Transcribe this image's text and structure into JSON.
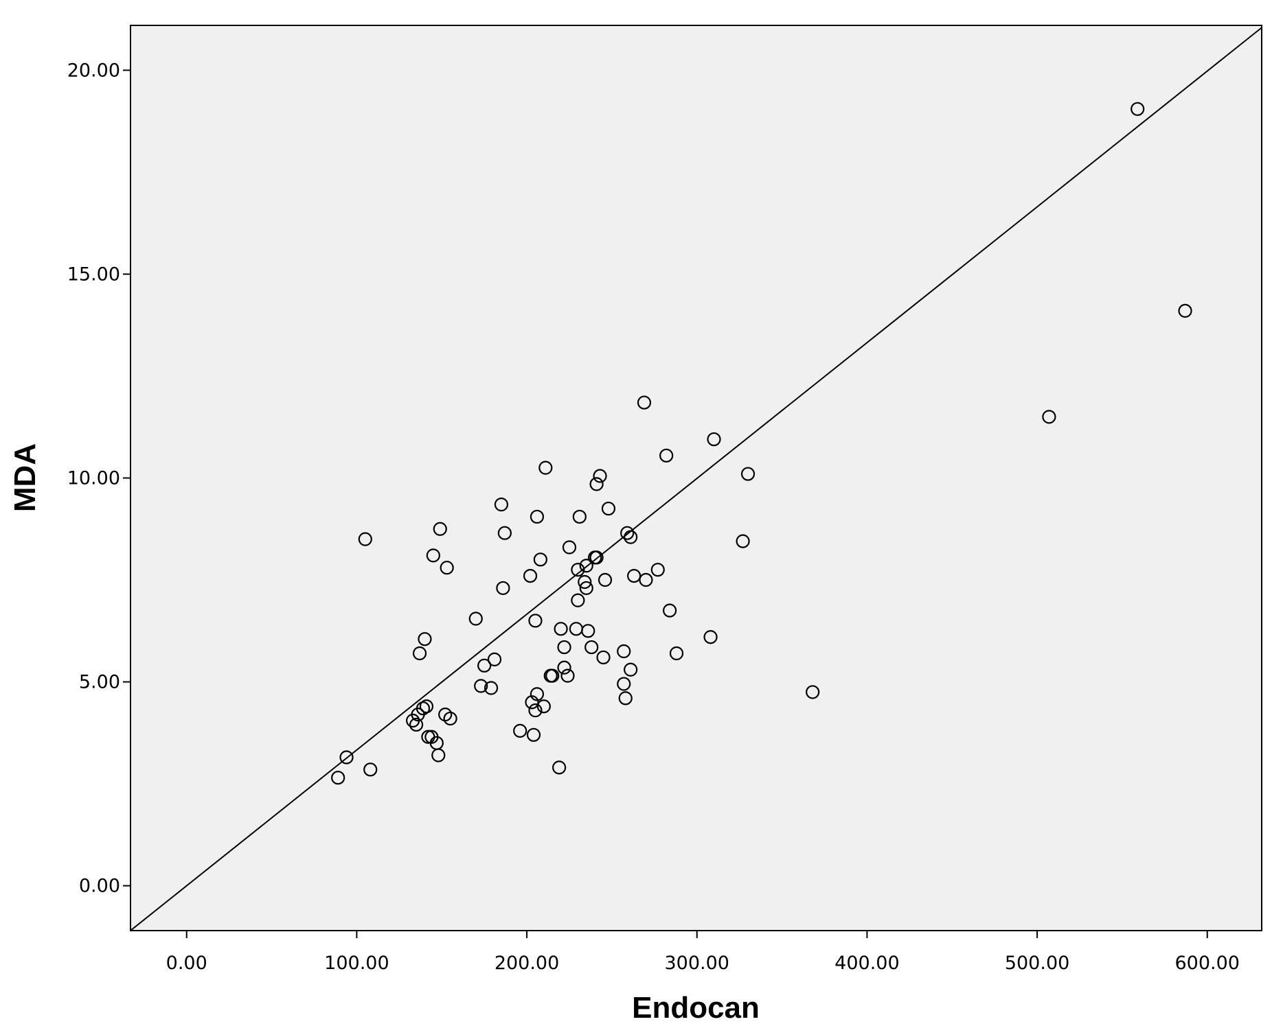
{
  "chart_data": {
    "type": "scatter",
    "xlabel": "Endocan",
    "ylabel": "MDA",
    "xlim": [
      -33,
      632
    ],
    "ylim": [
      -1.1,
      21.1
    ],
    "x_ticks": [
      0,
      100,
      200,
      300,
      400,
      500,
      600
    ],
    "x_tick_labels": [
      "0.00",
      "100.00",
      "200.00",
      "300.00",
      "400.00",
      "500.00",
      "600.00"
    ],
    "y_ticks": [
      0,
      5,
      10,
      15,
      20
    ],
    "y_tick_labels": [
      "0.00",
      "5.00",
      "10.00",
      "15.00",
      "20.00"
    ],
    "grid": false,
    "plot_background": "#f0f0f0",
    "marker": "open-circle",
    "colors": {
      "marker": "#000000",
      "line": "#000000",
      "frame": "#000000"
    },
    "fit_line": {
      "type": "linear",
      "intercept": 0.0,
      "slope": 0.0333
    },
    "points": [
      [
        89,
        2.65
      ],
      [
        94,
        3.15
      ],
      [
        105,
        8.5
      ],
      [
        108,
        2.85
      ],
      [
        133,
        4.05
      ],
      [
        135,
        3.95
      ],
      [
        136,
        4.2
      ],
      [
        137,
        5.7
      ],
      [
        139,
        4.35
      ],
      [
        140,
        6.05
      ],
      [
        141,
        4.4
      ],
      [
        142,
        3.65
      ],
      [
        144,
        3.65
      ],
      [
        145,
        8.1
      ],
      [
        147,
        3.5
      ],
      [
        148,
        3.2
      ],
      [
        149,
        8.75
      ],
      [
        152,
        4.2
      ],
      [
        153,
        7.8
      ],
      [
        155,
        4.1
      ],
      [
        170,
        6.55
      ],
      [
        173,
        4.9
      ],
      [
        175,
        5.4
      ],
      [
        179,
        4.85
      ],
      [
        181,
        5.55
      ],
      [
        185,
        9.35
      ],
      [
        186,
        7.3
      ],
      [
        187,
        8.65
      ],
      [
        196,
        3.8
      ],
      [
        202,
        7.6
      ],
      [
        203,
        4.5
      ],
      [
        204,
        3.7
      ],
      [
        205,
        4.3
      ],
      [
        205,
        6.5
      ],
      [
        206,
        9.05
      ],
      [
        206,
        4.7
      ],
      [
        208,
        8.0
      ],
      [
        210,
        4.4
      ],
      [
        211,
        10.25
      ],
      [
        214,
        5.15
      ],
      [
        215,
        5.15
      ],
      [
        219,
        2.9
      ],
      [
        220,
        6.3
      ],
      [
        222,
        5.85
      ],
      [
        222,
        5.35
      ],
      [
        224,
        5.15
      ],
      [
        225,
        8.3
      ],
      [
        229,
        6.3
      ],
      [
        230,
        7.0
      ],
      [
        230,
        7.75
      ],
      [
        231,
        9.05
      ],
      [
        234,
        7.45
      ],
      [
        235,
        7.3
      ],
      [
        235,
        7.85
      ],
      [
        236,
        6.25
      ],
      [
        238,
        5.85
      ],
      [
        240,
        8.05
      ],
      [
        241,
        9.85
      ],
      [
        241,
        8.05
      ],
      [
        243,
        10.05
      ],
      [
        245,
        5.6
      ],
      [
        246,
        7.5
      ],
      [
        248,
        9.25
      ],
      [
        257,
        5.75
      ],
      [
        257,
        4.95
      ],
      [
        258,
        4.6
      ],
      [
        259,
        8.65
      ],
      [
        261,
        8.55
      ],
      [
        261,
        5.3
      ],
      [
        263,
        7.6
      ],
      [
        269,
        11.85
      ],
      [
        270,
        7.5
      ],
      [
        277,
        7.75
      ],
      [
        282,
        10.55
      ],
      [
        284,
        6.75
      ],
      [
        288,
        5.7
      ],
      [
        308,
        6.1
      ],
      [
        310,
        10.95
      ],
      [
        327,
        8.45
      ],
      [
        330,
        10.1
      ],
      [
        368,
        4.75
      ],
      [
        507,
        11.5
      ],
      [
        559,
        19.05
      ],
      [
        587,
        14.1
      ]
    ]
  }
}
